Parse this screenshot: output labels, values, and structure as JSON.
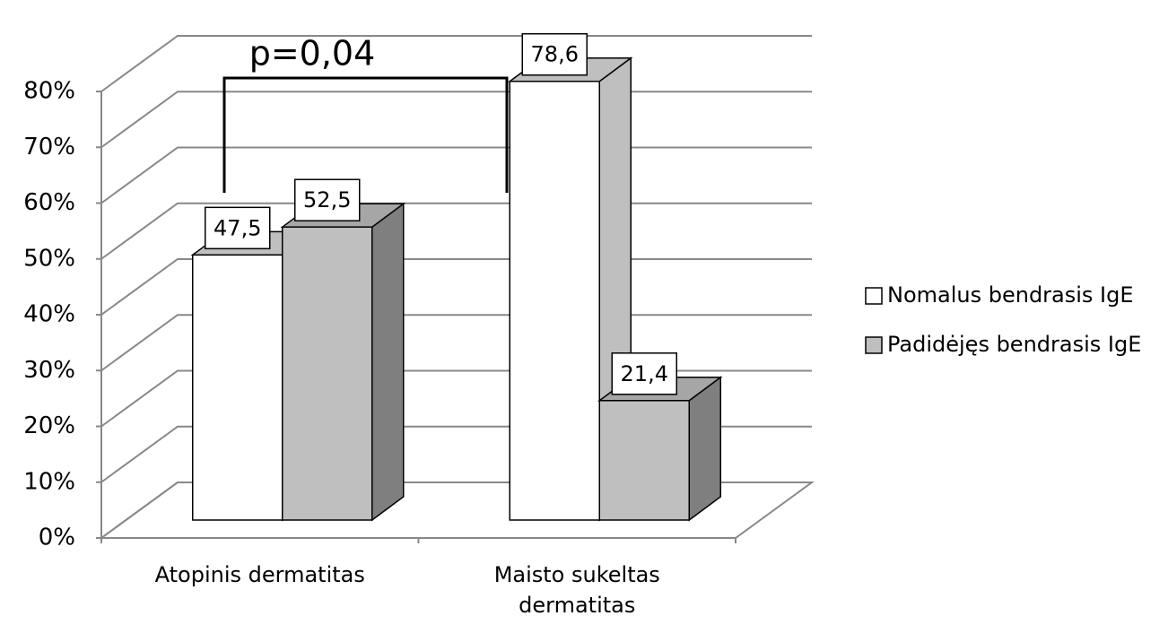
{
  "chart_data": {
    "type": "bar3d",
    "categories": [
      "Atopinis dermatitas",
      "Maisto sukeltas dermatitas"
    ],
    "series": [
      {
        "name": "Nomalus bendrasis IgE",
        "color": "#ffffff",
        "values": [
          47.5,
          78.6
        ],
        "value_labels": [
          "47,5",
          "78,6"
        ]
      },
      {
        "name": "Padidėjęs bendrasis IgE",
        "color": "#bfbfbf",
        "values": [
          52.5,
          21.4
        ],
        "value_labels": [
          "52,5",
          "21,4"
        ]
      }
    ],
    "ylim": [
      0,
      80
    ],
    "yticks": [
      {
        "value": 0,
        "label": "0%"
      },
      {
        "value": 10,
        "label": "10%"
      },
      {
        "value": 20,
        "label": "20%"
      },
      {
        "value": 30,
        "label": "30%"
      },
      {
        "value": 40,
        "label": "40%"
      },
      {
        "value": 50,
        "label": "50%"
      },
      {
        "value": 60,
        "label": "60%"
      },
      {
        "value": 70,
        "label": "70%"
      },
      {
        "value": 80,
        "label": "80%"
      }
    ],
    "grid": true,
    "legend": "right",
    "annotation": "p=0,04"
  }
}
